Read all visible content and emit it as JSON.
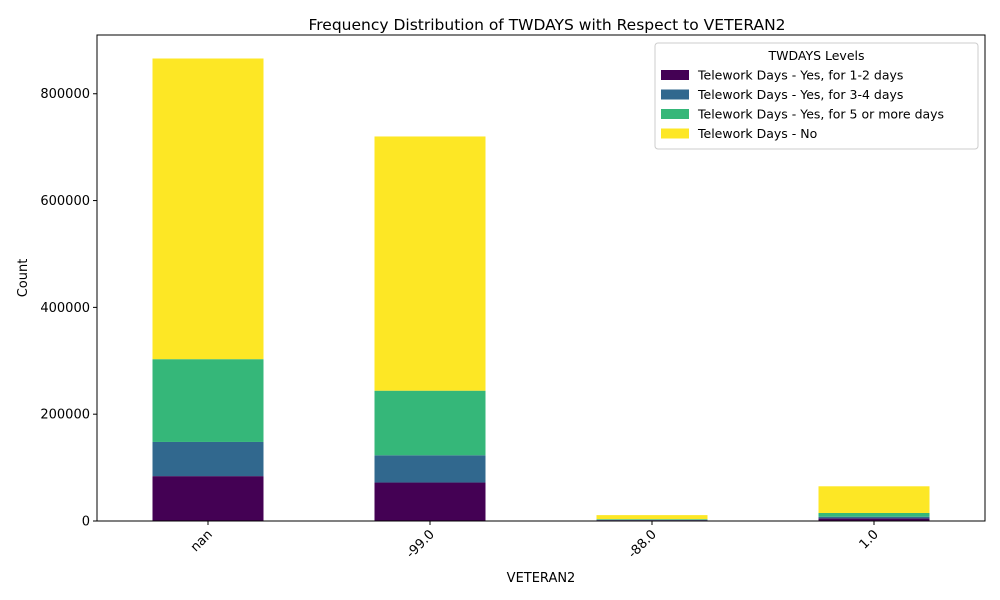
{
  "chart_data": {
    "type": "bar",
    "stacked": true,
    "title": "Frequency Distribution of TWDAYS with Respect to VETERAN2",
    "xlabel": "VETERAN2",
    "ylabel": "Count",
    "categories": [
      "nan",
      "-99.0",
      "-88.0",
      "1.0"
    ],
    "ylim": [
      0,
      910000
    ],
    "yticks": [
      0,
      200000,
      400000,
      600000,
      800000
    ],
    "ytick_labels": [
      "0",
      "200000",
      "400000",
      "600000",
      "800000"
    ],
    "legend": {
      "title": "TWDAYS Levels",
      "position": "top-right"
    },
    "grid": false,
    "series": [
      {
        "name": "Telework Days - Yes, for 1-2 days",
        "color": "#440154",
        "values": [
          84000,
          72000,
          1500,
          5000
        ]
      },
      {
        "name": "Telework Days - Yes, for 3-4 days",
        "color": "#31688e",
        "values": [
          64000,
          51000,
          700,
          3000
        ]
      },
      {
        "name": "Telework Days - Yes, for 5 or more days",
        "color": "#35b779",
        "values": [
          155000,
          121000,
          1300,
          7000
        ]
      },
      {
        "name": "Telework Days - No",
        "color": "#fde725",
        "values": [
          563000,
          476000,
          7500,
          50000
        ]
      }
    ]
  }
}
